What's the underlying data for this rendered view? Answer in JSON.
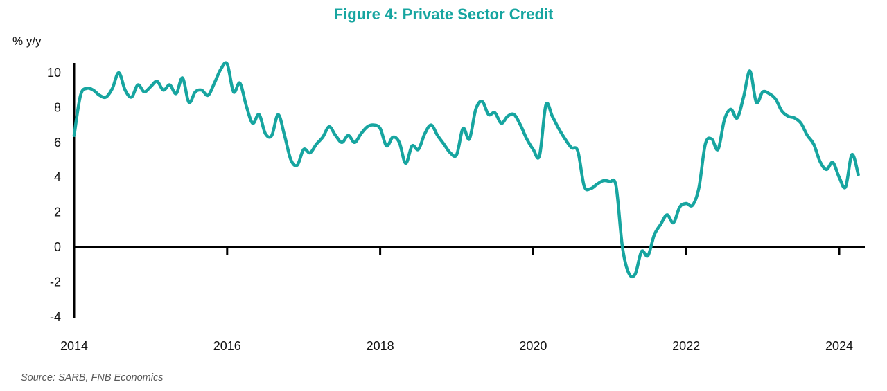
{
  "title": "Figure 4: Private Sector Credit",
  "axis": {
    "y_unit_label": "% y/y"
  },
  "source": "Source: SARB, FNB Economics",
  "colors": {
    "line": "#17A5A0",
    "title": "#17A5A0",
    "axis": "#000000",
    "tick_text": "#111111",
    "source_text": "#595959"
  },
  "chart_data": {
    "type": "line",
    "title": "Figure 4: Private Sector Credit",
    "xlabel": "",
    "ylabel": "% y/y",
    "source": "Source: SARB, FNB Economics",
    "grid": false,
    "legend": "none",
    "xlim": [
      2014,
      2024.45
    ],
    "ylim": [
      -4,
      10.7
    ],
    "x_ticks": [
      2014,
      2016,
      2018,
      2020,
      2022,
      2024
    ],
    "x_tick_labels": [
      "2014",
      "2016",
      "2018",
      "2020",
      "2022",
      "2024"
    ],
    "y_ticks": [
      10,
      8,
      6,
      4,
      2,
      0,
      -2,
      -4
    ],
    "y_tick_labels": [
      "10",
      "8",
      "6",
      "4",
      "2",
      "0",
      "-2",
      "-4"
    ],
    "series": [
      {
        "name": "Private sector credit (% y/y)",
        "color": "#17A5A0",
        "frequency": "monthly",
        "start": "2014-01",
        "end": "2024-04",
        "values": [
          6.4,
          8.7,
          9.1,
          9.0,
          8.7,
          8.6,
          9.1,
          10.0,
          9.0,
          8.6,
          9.3,
          8.9,
          9.2,
          9.5,
          9.0,
          9.3,
          8.8,
          9.7,
          8.3,
          8.9,
          9.0,
          8.7,
          9.4,
          10.2,
          10.5,
          8.9,
          9.4,
          8.1,
          7.1,
          7.6,
          6.5,
          6.4,
          7.6,
          6.4,
          5.0,
          4.7,
          5.6,
          5.4,
          5.9,
          6.3,
          6.9,
          6.4,
          6.0,
          6.4,
          6.0,
          6.5,
          6.9,
          7.0,
          6.8,
          5.8,
          6.3,
          6.0,
          4.8,
          5.8,
          5.6,
          6.5,
          7.0,
          6.4,
          5.9,
          5.4,
          5.3,
          6.8,
          6.2,
          7.9,
          8.35,
          7.6,
          7.7,
          7.1,
          7.5,
          7.6,
          7.0,
          6.2,
          5.6,
          5.25,
          8.15,
          7.5,
          6.8,
          6.2,
          5.7,
          5.5,
          3.5,
          3.35,
          3.6,
          3.8,
          3.75,
          3.5,
          0.0,
          -1.5,
          -1.55,
          -0.25,
          -0.5,
          0.7,
          1.3,
          1.85,
          1.4,
          2.3,
          2.5,
          2.4,
          3.4,
          5.9,
          6.2,
          5.6,
          7.3,
          7.9,
          7.4,
          8.6,
          10.1,
          8.3,
          8.9,
          8.8,
          8.5,
          7.8,
          7.5,
          7.4,
          7.1,
          6.4,
          5.9,
          4.9,
          4.45,
          4.85,
          4.0,
          3.45,
          5.3,
          4.15
        ]
      }
    ]
  }
}
